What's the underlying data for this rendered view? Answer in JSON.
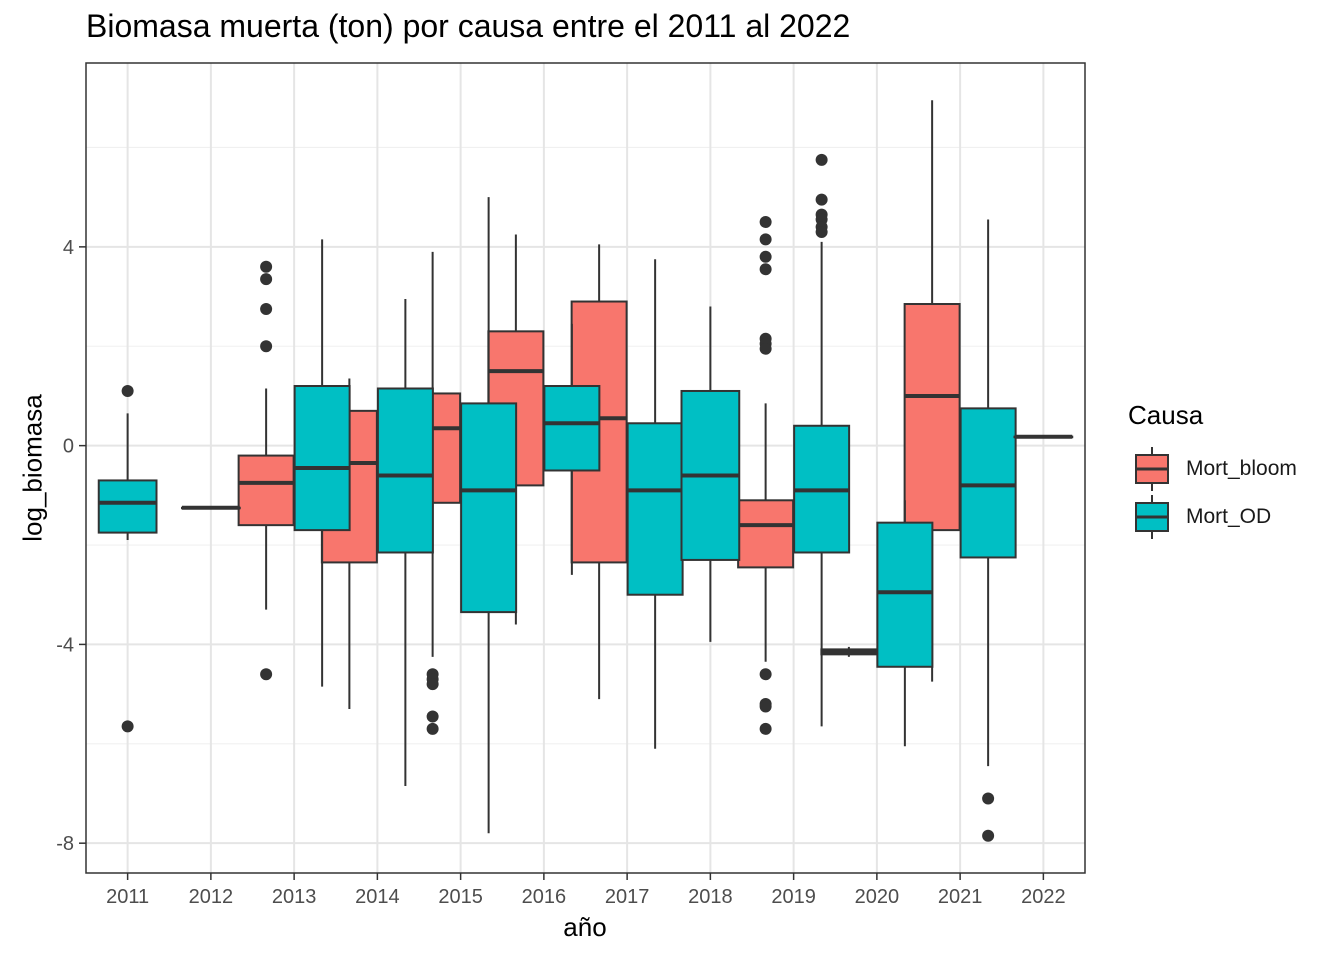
{
  "chart_data": {
    "type": "boxplot",
    "title": "Biomasa muerta (ton) por causa entre el 2011 al 2022",
    "xlabel": "año",
    "ylabel": "log_biomasa",
    "categories": [
      "2011",
      "2012",
      "2013",
      "2014",
      "2015",
      "2016",
      "2017",
      "2018",
      "2019",
      "2020",
      "2021",
      "2022"
    ],
    "yticks": [
      -8,
      -4,
      0,
      4
    ],
    "ylim": [
      -8.6,
      7.7
    ],
    "grid": true,
    "legend": {
      "title": "Causa",
      "position": "right",
      "entries": [
        {
          "name": "Mort_bloom",
          "color": "#F8766D"
        },
        {
          "name": "Mort_OD",
          "color": "#00BFC4"
        }
      ]
    },
    "series": [
      {
        "name": "Mort_bloom",
        "color": "#F8766D",
        "boxes": [
          {
            "year": "2013",
            "lower": -3.3,
            "q1": -1.6,
            "median": -0.75,
            "q3": -0.2,
            "upper": 1.15,
            "outliers": [
              3.6,
              3.35,
              2.75,
              2.0,
              -4.6
            ]
          },
          {
            "year": "2014",
            "lower": -5.3,
            "q1": -2.35,
            "median": -0.35,
            "q3": 0.7,
            "upper": 1.35,
            "outliers": []
          },
          {
            "year": "2015",
            "lower": -4.25,
            "q1": -1.15,
            "median": 0.35,
            "q3": 1.05,
            "upper": 3.9,
            "outliers": [
              -4.6,
              -4.7,
              -4.8,
              -5.45,
              -5.7
            ]
          },
          {
            "year": "2016",
            "lower": -3.6,
            "q1": -0.8,
            "median": 1.5,
            "q3": 2.3,
            "upper": 4.25,
            "outliers": []
          },
          {
            "year": "2017",
            "lower": -5.1,
            "q1": -2.35,
            "median": 0.55,
            "q3": 2.9,
            "upper": 4.05,
            "outliers": []
          },
          {
            "year": "2019",
            "lower": -4.35,
            "q1": -2.45,
            "median": -1.6,
            "q3": -1.1,
            "upper": 0.85,
            "outliers": [
              4.5,
              4.15,
              3.8,
              3.55,
              2.15,
              2.05,
              1.95,
              -4.6,
              -5.2,
              -5.25,
              -5.7
            ]
          },
          {
            "year": "2020",
            "lower": -4.25,
            "q1": -4.2,
            "median": -4.15,
            "q3": -4.1,
            "upper": -4.05,
            "outliers": []
          },
          {
            "year": "2021",
            "lower": -4.75,
            "q1": -1.7,
            "median": 1.0,
            "q3": 2.85,
            "upper": 6.95,
            "outliers": []
          }
        ]
      },
      {
        "name": "Mort_OD",
        "color": "#00BFC4",
        "boxes": [
          {
            "year": "2011",
            "lower": -1.9,
            "q1": -1.75,
            "median": -1.15,
            "q3": -0.7,
            "upper": 0.65,
            "outliers": [
              1.1,
              -5.65
            ]
          },
          {
            "year": "2012",
            "lower": -1.25,
            "q1": -1.25,
            "median": -1.25,
            "q3": -1.25,
            "upper": -1.25,
            "outliers": []
          },
          {
            "year": "2013",
            "lower": -4.85,
            "q1": -1.7,
            "median": -0.45,
            "q3": 1.2,
            "upper": 4.15,
            "outliers": []
          },
          {
            "year": "2014",
            "lower": -6.85,
            "q1": -2.15,
            "median": -0.6,
            "q3": 1.15,
            "upper": 2.95,
            "outliers": []
          },
          {
            "year": "2015",
            "lower": -7.8,
            "q1": -3.35,
            "median": -0.9,
            "q3": 0.85,
            "upper": 5.0,
            "outliers": []
          },
          {
            "year": "2016",
            "lower": -2.6,
            "q1": -0.5,
            "median": 0.45,
            "q3": 1.2,
            "upper": 2.45,
            "outliers": []
          },
          {
            "year": "2017",
            "lower": -6.1,
            "q1": -3.0,
            "median": -0.9,
            "q3": 0.45,
            "upper": 3.75,
            "outliers": []
          },
          {
            "year": "2018",
            "lower": -3.95,
            "q1": -2.3,
            "median": -0.6,
            "q3": 1.1,
            "upper": 2.8,
            "outliers": []
          },
          {
            "year": "2019",
            "lower": -5.65,
            "q1": -2.15,
            "median": -0.9,
            "q3": 0.4,
            "upper": 4.1,
            "outliers": [
              5.75,
              4.95,
              4.65,
              4.55,
              4.4,
              4.3
            ]
          },
          {
            "year": "2020",
            "lower": -6.05,
            "q1": -4.45,
            "median": -2.95,
            "q3": -1.55,
            "upper": -1.1,
            "outliers": []
          },
          {
            "year": "2021",
            "lower": -6.45,
            "q1": -2.25,
            "median": -0.8,
            "q3": 0.75,
            "upper": 4.55,
            "outliers": [
              -7.1,
              -7.85
            ]
          },
          {
            "year": "2022",
            "lower": 0.18,
            "q1": 0.18,
            "median": 0.18,
            "q3": 0.18,
            "upper": 0.18,
            "outliers": []
          }
        ]
      }
    ]
  }
}
